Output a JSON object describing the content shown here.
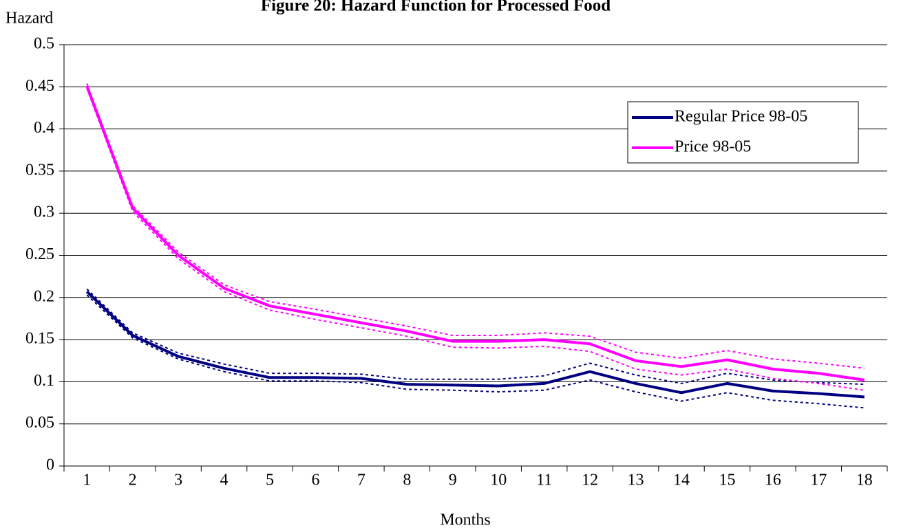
{
  "chart_data": {
    "type": "line",
    "title": "Figure 20: Hazard Function for Processed Food",
    "y_label": "Hazard",
    "x_label": "Months",
    "categories": [
      "1",
      "2",
      "3",
      "4",
      "5",
      "6",
      "7",
      "8",
      "9",
      "10",
      "11",
      "12",
      "13",
      "14",
      "15",
      "16",
      "17",
      "18"
    ],
    "ylim": [
      0,
      0.5
    ],
    "yticks": [
      0,
      0.05,
      0.1,
      0.15,
      0.2,
      0.25,
      0.3,
      0.35,
      0.4,
      0.45,
      0.5
    ],
    "grid": true,
    "legend": "upper right",
    "series": [
      {
        "name": "Regular Price 98-05",
        "color": "#000080",
        "values": [
          0.207,
          0.155,
          0.13,
          0.116,
          0.105,
          0.105,
          0.104,
          0.097,
          0.096,
          0.095,
          0.098,
          0.112,
          0.098,
          0.087,
          0.098,
          0.089,
          0.086,
          0.082
        ],
        "lower": [
          0.203,
          0.152,
          0.127,
          0.112,
          0.101,
          0.101,
          0.099,
          0.091,
          0.09,
          0.088,
          0.09,
          0.102,
          0.088,
          0.077,
          0.087,
          0.078,
          0.074,
          0.069
        ],
        "upper": [
          0.21,
          0.158,
          0.134,
          0.121,
          0.11,
          0.11,
          0.109,
          0.103,
          0.103,
          0.103,
          0.107,
          0.122,
          0.108,
          0.098,
          0.11,
          0.102,
          0.099,
          0.097
        ]
      },
      {
        "name": "Price 98-05",
        "color": "#ff00ff",
        "values": [
          0.451,
          0.306,
          0.25,
          0.211,
          0.19,
          0.18,
          0.17,
          0.16,
          0.148,
          0.148,
          0.15,
          0.145,
          0.125,
          0.118,
          0.126,
          0.115,
          0.11,
          0.102
        ],
        "lower": [
          0.448,
          0.302,
          0.246,
          0.207,
          0.185,
          0.174,
          0.164,
          0.154,
          0.141,
          0.14,
          0.142,
          0.136,
          0.115,
          0.108,
          0.115,
          0.104,
          0.098,
          0.09
        ],
        "upper": [
          0.454,
          0.309,
          0.254,
          0.215,
          0.195,
          0.186,
          0.176,
          0.166,
          0.155,
          0.155,
          0.158,
          0.154,
          0.135,
          0.128,
          0.137,
          0.127,
          0.122,
          0.116
        ]
      }
    ]
  }
}
